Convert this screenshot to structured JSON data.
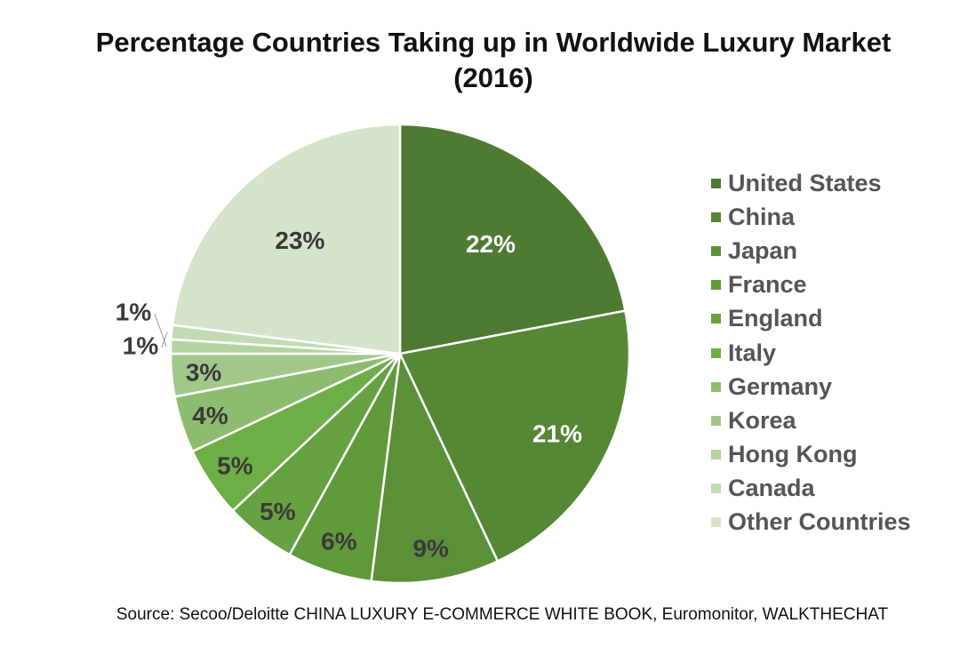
{
  "chart_data": {
    "type": "pie",
    "title_line1": "Percentage Countries Taking up in Worldwide Luxury Market",
    "title_line2": "(2016)",
    "slices": [
      {
        "label": "United States",
        "value": 22,
        "display": "22%",
        "color": "#4e7a32",
        "label_color": "#ffffff"
      },
      {
        "label": "China",
        "value": 21,
        "display": "21%",
        "color": "#558735",
        "label_color": "#ffffff"
      },
      {
        "label": "Japan",
        "value": 9,
        "display": "9%",
        "color": "#5a9038",
        "label_color": "#3a3a3a"
      },
      {
        "label": "France",
        "value": 6,
        "display": "6%",
        "color": "#609a3b",
        "label_color": "#3a3a3a"
      },
      {
        "label": "England",
        "value": 5,
        "display": "5%",
        "color": "#66a241",
        "label_color": "#3a3a3a"
      },
      {
        "label": "Italy",
        "value": 5,
        "display": "5%",
        "color": "#6eae47",
        "label_color": "#3a3a3a"
      },
      {
        "label": "Germany",
        "value": 4,
        "display": "4%",
        "color": "#8dbc70",
        "label_color": "#3a3a3a"
      },
      {
        "label": "Korea",
        "value": 3,
        "display": "3%",
        "color": "#a2c78a",
        "label_color": "#3a3a3a"
      },
      {
        "label": "Hong Kong",
        "value": 1,
        "display": "1%",
        "color": "#b5d3a2",
        "label_color": "#3a3a3a"
      },
      {
        "label": "Canada",
        "value": 1,
        "display": "1%",
        "color": "#c3dbb4",
        "label_color": "#3a3a3a"
      },
      {
        "label": "Other Countries",
        "value": 23,
        "display": "23%",
        "color": "#d6e4cc",
        "label_color": "#3a3a3a"
      }
    ],
    "legend_position": "right",
    "source": "Source: Secoo/Deloitte CHINA LUXURY E-COMMERCE WHITE BOOK, Euromonitor, WALKTHECHAT"
  }
}
